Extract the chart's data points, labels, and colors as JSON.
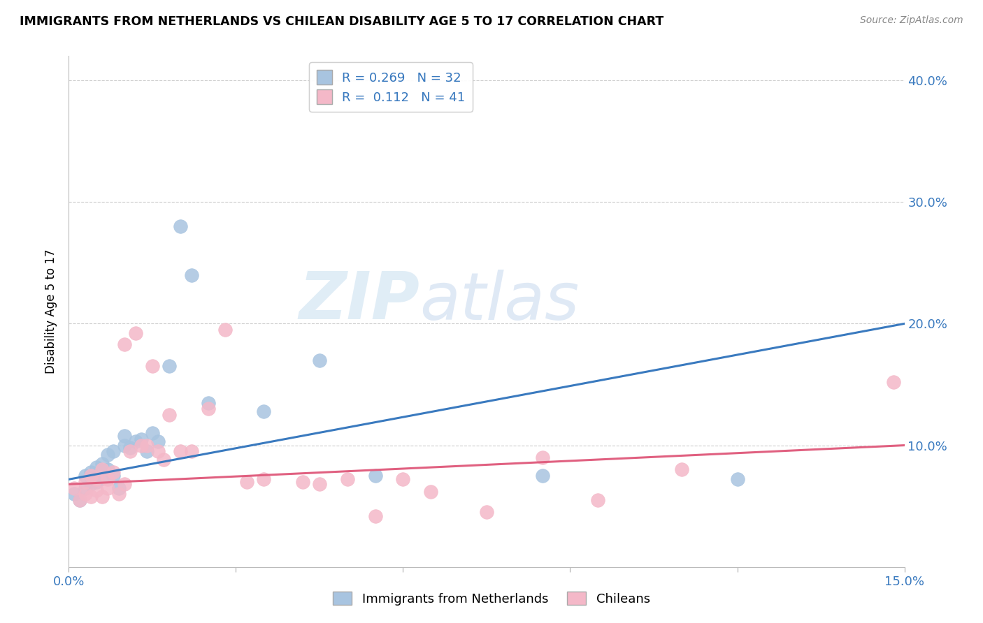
{
  "title": "IMMIGRANTS FROM NETHERLANDS VS CHILEAN DISABILITY AGE 5 TO 17 CORRELATION CHART",
  "source": "Source: ZipAtlas.com",
  "ylabel": "Disability Age 5 to 17",
  "xlim": [
    0.0,
    0.15
  ],
  "ylim": [
    0.0,
    0.42
  ],
  "blue_color": "#a8c4e0",
  "pink_color": "#f4b8c8",
  "blue_line_color": "#3a7abf",
  "pink_line_color": "#e06080",
  "legend_R1": "0.269",
  "legend_N1": "32",
  "legend_R2": "0.112",
  "legend_N2": "41",
  "watermark_zip": "ZIP",
  "watermark_atlas": "atlas",
  "blue_line_y0": 0.072,
  "blue_line_y1": 0.2,
  "pink_line_y0": 0.068,
  "pink_line_y1": 0.1,
  "blue_scatter_x": [
    0.001,
    0.002,
    0.003,
    0.003,
    0.004,
    0.004,
    0.005,
    0.005,
    0.006,
    0.006,
    0.007,
    0.007,
    0.008,
    0.008,
    0.009,
    0.01,
    0.01,
    0.011,
    0.012,
    0.013,
    0.014,
    0.015,
    0.016,
    0.018,
    0.02,
    0.022,
    0.025,
    0.035,
    0.045,
    0.055,
    0.085,
    0.12
  ],
  "blue_scatter_y": [
    0.06,
    0.055,
    0.065,
    0.075,
    0.068,
    0.078,
    0.07,
    0.082,
    0.073,
    0.085,
    0.08,
    0.092,
    0.075,
    0.095,
    0.065,
    0.1,
    0.108,
    0.098,
    0.103,
    0.105,
    0.095,
    0.11,
    0.103,
    0.165,
    0.28,
    0.24,
    0.135,
    0.128,
    0.17,
    0.075,
    0.075,
    0.072
  ],
  "pink_scatter_x": [
    0.001,
    0.002,
    0.003,
    0.003,
    0.004,
    0.004,
    0.005,
    0.005,
    0.006,
    0.006,
    0.007,
    0.007,
    0.008,
    0.009,
    0.01,
    0.01,
    0.011,
    0.012,
    0.013,
    0.014,
    0.015,
    0.016,
    0.017,
    0.018,
    0.02,
    0.022,
    0.025,
    0.028,
    0.032,
    0.035,
    0.042,
    0.045,
    0.05,
    0.055,
    0.06,
    0.065,
    0.075,
    0.085,
    0.095,
    0.11,
    0.148
  ],
  "pink_scatter_y": [
    0.065,
    0.055,
    0.06,
    0.07,
    0.058,
    0.075,
    0.063,
    0.072,
    0.058,
    0.08,
    0.065,
    0.072,
    0.078,
    0.06,
    0.068,
    0.183,
    0.095,
    0.192,
    0.1,
    0.1,
    0.165,
    0.095,
    0.088,
    0.125,
    0.095,
    0.095,
    0.13,
    0.195,
    0.07,
    0.072,
    0.07,
    0.068,
    0.072,
    0.042,
    0.072,
    0.062,
    0.045,
    0.09,
    0.055,
    0.08,
    0.152
  ]
}
